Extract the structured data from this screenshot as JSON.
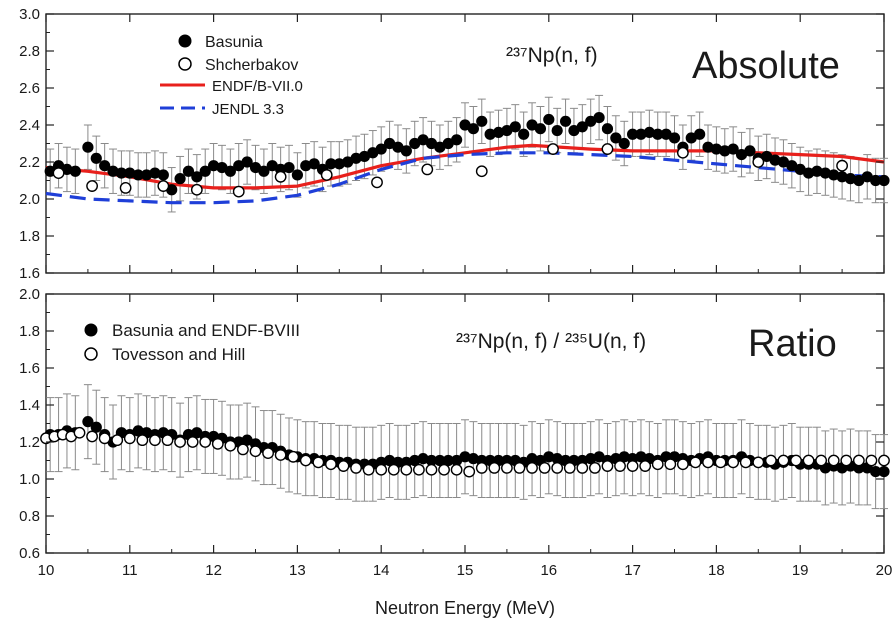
{
  "chart_data": {
    "x_axis": {
      "label": "Neutron Energy (MeV)",
      "range": [
        10,
        20
      ],
      "ticks": [
        10,
        11,
        12,
        13,
        14,
        15,
        16,
        17,
        18,
        19,
        20
      ],
      "tick_labels": [
        "10",
        "11",
        "12",
        "13",
        "14",
        "15",
        "16",
        "17",
        "18",
        "19",
        "20"
      ]
    },
    "panels": [
      {
        "type": "scatter",
        "title": "Absolute",
        "reaction_label": "²³⁷Np(n, f)",
        "ylim": [
          1.6,
          3.0
        ],
        "y_ticks": [
          1.6,
          1.8,
          2.0,
          2.2,
          2.4,
          2.6,
          2.8,
          3.0
        ],
        "y_tick_labels": [
          "1.6",
          "1.8",
          "2.0",
          "2.2",
          "2.4",
          "2.6",
          "2.8",
          "3.0"
        ],
        "legend_position": "top-left",
        "series": [
          {
            "name": "Basunia",
            "marker": "filled-circle",
            "color": "#000000",
            "x": [
              10.05,
              10.15,
              10.25,
              10.35,
              10.5,
              10.6,
              10.7,
              10.8,
              10.9,
              11.0,
              11.1,
              11.2,
              11.3,
              11.4,
              11.5,
              11.6,
              11.7,
              11.8,
              11.9,
              12.0,
              12.1,
              12.2,
              12.3,
              12.4,
              12.5,
              12.6,
              12.7,
              12.8,
              12.9,
              13.0,
              13.1,
              13.2,
              13.3,
              13.4,
              13.5,
              13.6,
              13.7,
              13.8,
              13.9,
              14.0,
              14.1,
              14.2,
              14.3,
              14.4,
              14.5,
              14.6,
              14.7,
              14.8,
              14.9,
              15.0,
              15.1,
              15.2,
              15.3,
              15.4,
              15.5,
              15.6,
              15.7,
              15.8,
              15.9,
              16.0,
              16.1,
              16.2,
              16.3,
              16.4,
              16.5,
              16.6,
              16.7,
              16.8,
              16.9,
              17.0,
              17.1,
              17.2,
              17.3,
              17.4,
              17.5,
              17.6,
              17.7,
              17.8,
              17.9,
              18.0,
              18.1,
              18.2,
              18.3,
              18.4,
              18.5,
              18.6,
              18.7,
              18.8,
              18.9,
              19.0,
              19.1,
              19.2,
              19.3,
              19.4,
              19.5,
              19.6,
              19.7,
              19.8,
              19.9,
              20.0
            ],
            "y": [
              2.15,
              2.18,
              2.16,
              2.15,
              2.28,
              2.22,
              2.18,
              2.15,
              2.14,
              2.14,
              2.13,
              2.13,
              2.14,
              2.13,
              2.05,
              2.11,
              2.15,
              2.12,
              2.15,
              2.18,
              2.17,
              2.15,
              2.18,
              2.2,
              2.17,
              2.15,
              2.18,
              2.16,
              2.17,
              2.13,
              2.18,
              2.19,
              2.16,
              2.19,
              2.19,
              2.2,
              2.22,
              2.23,
              2.25,
              2.27,
              2.3,
              2.28,
              2.26,
              2.3,
              2.32,
              2.3,
              2.28,
              2.3,
              2.32,
              2.4,
              2.38,
              2.42,
              2.35,
              2.36,
              2.37,
              2.39,
              2.35,
              2.4,
              2.38,
              2.43,
              2.37,
              2.42,
              2.37,
              2.39,
              2.42,
              2.44,
              2.38,
              2.33,
              2.3,
              2.35,
              2.35,
              2.36,
              2.35,
              2.35,
              2.33,
              2.28,
              2.33,
              2.35,
              2.28,
              2.27,
              2.26,
              2.27,
              2.24,
              2.26,
              2.22,
              2.23,
              2.21,
              2.2,
              2.18,
              2.16,
              2.14,
              2.15,
              2.14,
              2.13,
              2.12,
              2.11,
              2.1,
              2.12,
              2.1,
              2.1
            ],
            "yerr": 0.12
          },
          {
            "name": "Shcherbakov",
            "marker": "open-circle",
            "color": "#000000",
            "x": [
              10.15,
              10.55,
              10.95,
              11.4,
              11.8,
              12.3,
              12.8,
              13.35,
              13.95,
              14.55,
              15.2,
              16.05,
              16.7,
              17.6,
              18.5,
              19.5
            ],
            "y": [
              2.14,
              2.07,
              2.06,
              2.07,
              2.05,
              2.04,
              2.12,
              2.13,
              2.09,
              2.16,
              2.15,
              2.27,
              2.27,
              2.25,
              2.2,
              2.18
            ]
          },
          {
            "name": "ENDF/B-VII.0",
            "type": "line",
            "color": "#e8201c",
            "dash": "solid",
            "x": [
              10.0,
              10.5,
              11.0,
              11.5,
              12.0,
              12.5,
              13.0,
              13.5,
              14.0,
              14.5,
              15.0,
              15.5,
              15.8,
              16.5,
              17.0,
              17.5,
              18.0,
              18.5,
              19.0,
              19.5,
              20.0
            ],
            "y": [
              2.17,
              2.15,
              2.12,
              2.08,
              2.06,
              2.06,
              2.07,
              2.12,
              2.18,
              2.22,
              2.25,
              2.28,
              2.29,
              2.27,
              2.26,
              2.26,
              2.26,
              2.25,
              2.24,
              2.23,
              2.2
            ]
          },
          {
            "name": "JENDL 3.3",
            "type": "line",
            "color": "#1f3fd8",
            "dash": "dashed",
            "x": [
              10.0,
              10.5,
              11.0,
              11.5,
              12.0,
              12.5,
              13.0,
              13.5,
              14.0,
              14.5,
              15.0,
              15.5,
              16.0,
              16.5,
              17.0,
              17.5,
              18.0,
              18.5,
              19.0,
              19.5,
              20.0
            ],
            "y": [
              2.03,
              2.0,
              1.99,
              1.98,
              1.98,
              1.99,
              2.02,
              2.08,
              2.16,
              2.22,
              2.24,
              2.25,
              2.25,
              2.24,
              2.23,
              2.21,
              2.19,
              2.17,
              2.15,
              2.13,
              2.12
            ]
          }
        ]
      },
      {
        "type": "scatter",
        "title": "Ratio",
        "reaction_label": "²³⁷Np(n, f) / ²³⁵U(n, f)",
        "ylim": [
          0.6,
          2.0
        ],
        "y_ticks": [
          0.6,
          0.8,
          1.0,
          1.2,
          1.4,
          1.6,
          1.8,
          2.0
        ],
        "y_tick_labels": [
          "0.6",
          "0.8",
          "1.0",
          "1.2",
          "1.4",
          "1.6",
          "1.8",
          "2.0"
        ],
        "legend_position": "top-left",
        "series": [
          {
            "name": "Basunia and ENDF-BVIII",
            "marker": "filled-circle",
            "color": "#000000",
            "x": [
              10.05,
              10.15,
              10.25,
              10.35,
              10.5,
              10.6,
              10.7,
              10.8,
              10.9,
              11.0,
              11.1,
              11.2,
              11.3,
              11.4,
              11.5,
              11.6,
              11.7,
              11.8,
              11.9,
              12.0,
              12.1,
              12.2,
              12.3,
              12.4,
              12.5,
              12.6,
              12.7,
              12.8,
              12.9,
              13.0,
              13.1,
              13.2,
              13.3,
              13.4,
              13.5,
              13.6,
              13.7,
              13.8,
              13.9,
              14.0,
              14.1,
              14.2,
              14.3,
              14.4,
              14.5,
              14.6,
              14.7,
              14.8,
              14.9,
              15.0,
              15.1,
              15.2,
              15.3,
              15.4,
              15.5,
              15.6,
              15.7,
              15.8,
              15.9,
              16.0,
              16.1,
              16.2,
              16.3,
              16.4,
              16.5,
              16.6,
              16.7,
              16.8,
              16.9,
              17.0,
              17.1,
              17.2,
              17.3,
              17.4,
              17.5,
              17.6,
              17.7,
              17.8,
              17.9,
              18.0,
              18.1,
              18.2,
              18.3,
              18.4,
              18.5,
              18.6,
              18.7,
              18.8,
              18.9,
              19.0,
              19.1,
              19.2,
              19.3,
              19.4,
              19.5,
              19.6,
              19.7,
              19.8,
              19.9,
              20.0
            ],
            "y": [
              1.24,
              1.24,
              1.26,
              1.25,
              1.31,
              1.28,
              1.24,
              1.2,
              1.25,
              1.24,
              1.26,
              1.25,
              1.24,
              1.25,
              1.24,
              1.21,
              1.24,
              1.25,
              1.23,
              1.23,
              1.22,
              1.2,
              1.2,
              1.21,
              1.19,
              1.17,
              1.17,
              1.15,
              1.13,
              1.12,
              1.11,
              1.11,
              1.1,
              1.1,
              1.09,
              1.09,
              1.08,
              1.08,
              1.08,
              1.09,
              1.1,
              1.09,
              1.09,
              1.1,
              1.11,
              1.1,
              1.1,
              1.1,
              1.1,
              1.12,
              1.11,
              1.1,
              1.1,
              1.1,
              1.1,
              1.1,
              1.09,
              1.11,
              1.1,
              1.12,
              1.11,
              1.1,
              1.1,
              1.1,
              1.11,
              1.12,
              1.1,
              1.11,
              1.12,
              1.11,
              1.12,
              1.11,
              1.1,
              1.12,
              1.12,
              1.11,
              1.1,
              1.11,
              1.12,
              1.1,
              1.1,
              1.1,
              1.12,
              1.1,
              1.09,
              1.09,
              1.08,
              1.09,
              1.1,
              1.08,
              1.08,
              1.08,
              1.06,
              1.07,
              1.06,
              1.07,
              1.06,
              1.06,
              1.04,
              1.04
            ],
            "yerr": 0.2
          },
          {
            "name": "Tovesson and Hill",
            "marker": "open-circle",
            "color": "#000000",
            "x": [
              10.0,
              10.1,
              10.2,
              10.3,
              10.4,
              10.55,
              10.7,
              10.85,
              11.0,
              11.15,
              11.3,
              11.45,
              11.6,
              11.75,
              11.9,
              12.05,
              12.2,
              12.35,
              12.5,
              12.65,
              12.8,
              12.95,
              13.1,
              13.25,
              13.4,
              13.55,
              13.7,
              13.85,
              14.0,
              14.15,
              14.3,
              14.45,
              14.6,
              14.75,
              14.9,
              15.05,
              15.2,
              15.35,
              15.5,
              15.65,
              15.8,
              15.95,
              16.1,
              16.25,
              16.4,
              16.55,
              16.7,
              16.85,
              17.0,
              17.15,
              17.3,
              17.45,
              17.6,
              17.75,
              17.9,
              18.05,
              18.2,
              18.35,
              18.5,
              18.65,
              18.8,
              18.95,
              19.1,
              19.25,
              19.4,
              19.55,
              19.7,
              19.85,
              20.0
            ],
            "y": [
              1.22,
              1.23,
              1.24,
              1.23,
              1.25,
              1.23,
              1.22,
              1.21,
              1.22,
              1.21,
              1.21,
              1.21,
              1.2,
              1.2,
              1.2,
              1.19,
              1.18,
              1.16,
              1.15,
              1.14,
              1.13,
              1.12,
              1.1,
              1.09,
              1.08,
              1.07,
              1.06,
              1.05,
              1.05,
              1.05,
              1.05,
              1.05,
              1.05,
              1.05,
              1.05,
              1.04,
              1.06,
              1.06,
              1.06,
              1.06,
              1.06,
              1.06,
              1.06,
              1.06,
              1.06,
              1.06,
              1.07,
              1.07,
              1.07,
              1.07,
              1.08,
              1.08,
              1.08,
              1.09,
              1.09,
              1.09,
              1.09,
              1.09,
              1.09,
              1.1,
              1.1,
              1.1,
              1.1,
              1.1,
              1.1,
              1.1,
              1.1,
              1.1,
              1.1
            ]
          }
        ]
      }
    ]
  }
}
